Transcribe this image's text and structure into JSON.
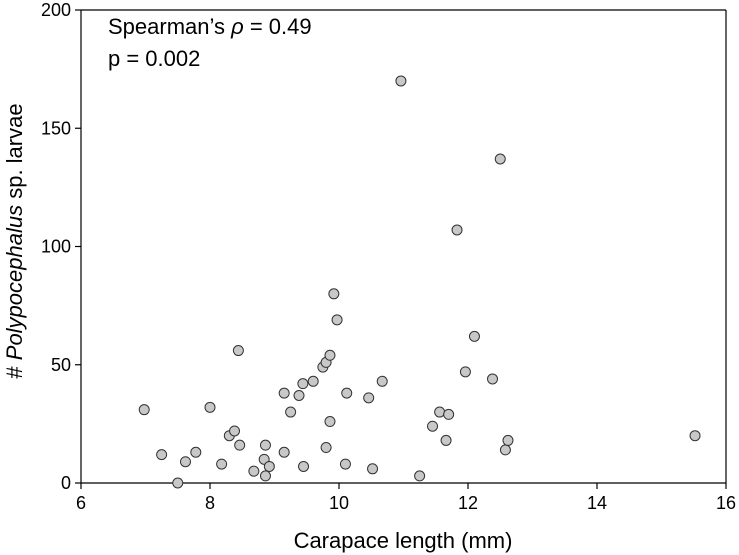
{
  "chart_data": {
    "type": "scatter",
    "title": "",
    "xlabel": "Carapace length (mm)",
    "ylabel_prefix": "# ",
    "ylabel_italic": "Polypocephalus",
    "ylabel_suffix": " sp. larvae",
    "xlim": [
      6,
      16
    ],
    "ylim": [
      0,
      200
    ],
    "xticks": [
      6,
      8,
      10,
      12,
      14,
      16
    ],
    "yticks": [
      0,
      50,
      100,
      150,
      200
    ],
    "grid": false,
    "annotations": {
      "stat_prefix": "Spearman’s ",
      "stat_symbol": "ρ",
      "stat_suffix": " = 0.49",
      "p_value": "p = 0.002"
    },
    "marker_fill": "#c8c8c8",
    "marker_stroke": "#333333",
    "points": [
      [
        6.98,
        31
      ],
      [
        7.25,
        12
      ],
      [
        7.5,
        0
      ],
      [
        7.62,
        9
      ],
      [
        7.78,
        13
      ],
      [
        8.0,
        32
      ],
      [
        8.18,
        8
      ],
      [
        8.3,
        20
      ],
      [
        8.38,
        22
      ],
      [
        8.44,
        56
      ],
      [
        8.46,
        16
      ],
      [
        8.68,
        5
      ],
      [
        8.84,
        10
      ],
      [
        8.86,
        16
      ],
      [
        8.86,
        3
      ],
      [
        8.92,
        7
      ],
      [
        9.15,
        38
      ],
      [
        9.15,
        13
      ],
      [
        9.25,
        30
      ],
      [
        9.38,
        37
      ],
      [
        9.44,
        42
      ],
      [
        9.45,
        7
      ],
      [
        9.6,
        43
      ],
      [
        9.75,
        49
      ],
      [
        9.8,
        51
      ],
      [
        9.8,
        15
      ],
      [
        9.86,
        54
      ],
      [
        9.86,
        26
      ],
      [
        9.92,
        80
      ],
      [
        9.97,
        69
      ],
      [
        10.12,
        38
      ],
      [
        10.1,
        8
      ],
      [
        10.46,
        36
      ],
      [
        10.52,
        6
      ],
      [
        10.67,
        43
      ],
      [
        10.96,
        170
      ],
      [
        11.25,
        3
      ],
      [
        11.45,
        24
      ],
      [
        11.56,
        30
      ],
      [
        11.66,
        18
      ],
      [
        11.7,
        29
      ],
      [
        11.83,
        107
      ],
      [
        11.96,
        47
      ],
      [
        12.1,
        62
      ],
      [
        12.38,
        44
      ],
      [
        12.5,
        137
      ],
      [
        12.58,
        14
      ],
      [
        12.62,
        18
      ],
      [
        15.52,
        20
      ]
    ]
  }
}
